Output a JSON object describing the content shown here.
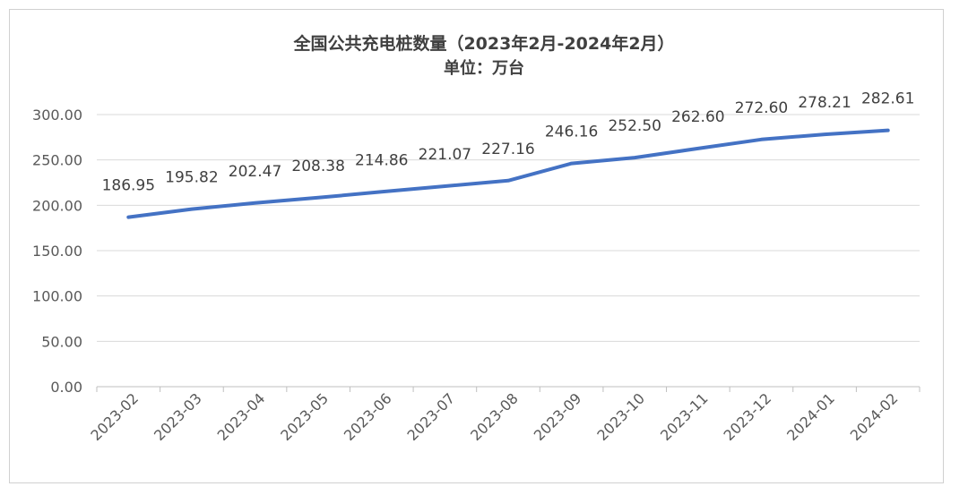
{
  "chart_data": {
    "type": "line",
    "title": "全国公共充电桩数量（2023年2月-2024年2月）",
    "subtitle": "单位：万台",
    "categories": [
      "2023-02",
      "2023-03",
      "2023-04",
      "2023-05",
      "2023-06",
      "2023-07",
      "2023-08",
      "2023-09",
      "2023-10",
      "2023-11",
      "2023-12",
      "2024-01",
      "2024-02"
    ],
    "series": [
      {
        "values": [
          186.95,
          195.82,
          202.47,
          208.38,
          214.86,
          221.07,
          227.16,
          246.16,
          252.5,
          262.6,
          272.6,
          278.21,
          282.61
        ],
        "color": "#4472c4"
      }
    ],
    "data_labels": [
      "186.95",
      "195.82",
      "202.47",
      "208.38",
      "214.86",
      "221.07",
      "227.16",
      "246.16",
      "252.50",
      "262.60",
      "272.60",
      "278.21",
      "282.61"
    ],
    "y_ticks": [
      "0.00",
      "50.00",
      "100.00",
      "150.00",
      "200.00",
      "250.00",
      "300.00"
    ],
    "ylim": [
      0,
      300
    ],
    "grid": true,
    "legend": "none",
    "colors": {
      "line": "#4472c4",
      "grid": "#d9d9d9",
      "text": "#595959"
    }
  }
}
